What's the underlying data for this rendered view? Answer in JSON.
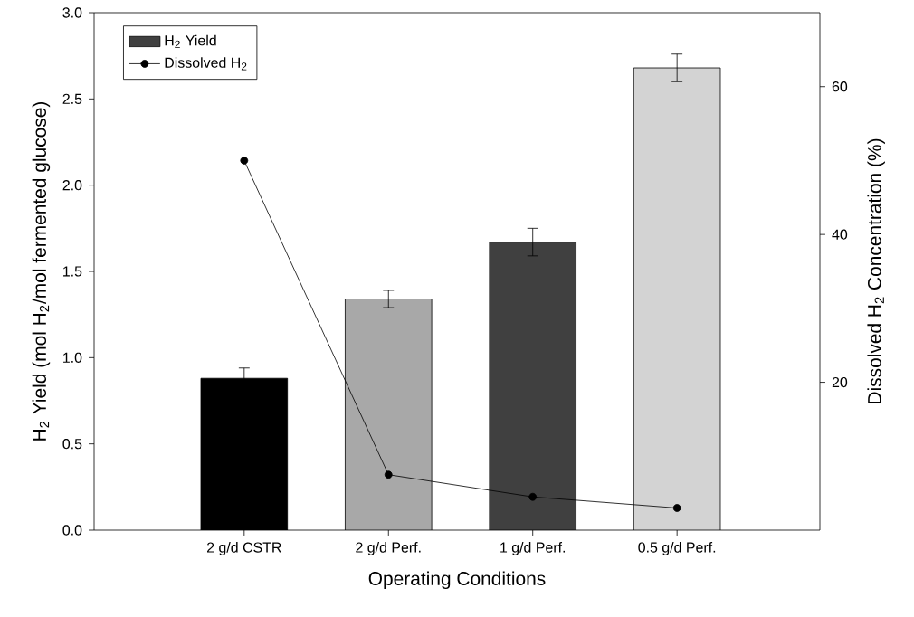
{
  "chart_data": {
    "type": "bar",
    "xlabel": "Operating Conditions",
    "ylabel": "H$_{2}$ Yield (mol H$_{2}$/mol fermented glucose)",
    "y2label": "Dissolved H$_{2}$ Concentration (%)",
    "categories": [
      "2 g/d CSTR",
      "2 g/d Perf.",
      "1 g/d Perf.",
      "0.5 g/d Perf."
    ],
    "series": [
      {
        "name": "H$_{2}$ Yield",
        "color": "#404040",
        "colors": [
          "#000000",
          "#a8a8a8",
          "#404040",
          "#d3d3d3"
        ],
        "values": [
          0.88,
          1.34,
          1.67,
          2.68
        ],
        "errors": [
          0.06,
          0.05,
          0.08,
          0.08
        ]
      },
      {
        "name": "Dissolved H$_{2}$",
        "type": "line",
        "axis": "y2",
        "color": "#000000",
        "values": [
          50,
          7.5,
          4.5,
          3
        ]
      }
    ],
    "ylim": [
      0,
      3
    ],
    "yticks": [
      {
        "value": 0,
        "label": "0.0"
      },
      {
        "value": 0.5,
        "label": "0.5"
      },
      {
        "value": 1,
        "label": "1.0"
      },
      {
        "value": 1.5,
        "label": "1.5"
      },
      {
        "value": 2,
        "label": "2.0"
      },
      {
        "value": 2.5,
        "label": "2.5"
      },
      {
        "value": 3,
        "label": "3.0"
      }
    ],
    "y2lim": [
      0,
      70
    ],
    "y2ticks": [
      20,
      40,
      60
    ],
    "legend": "top left",
    "marker": "circle",
    "line_style": "solid"
  }
}
